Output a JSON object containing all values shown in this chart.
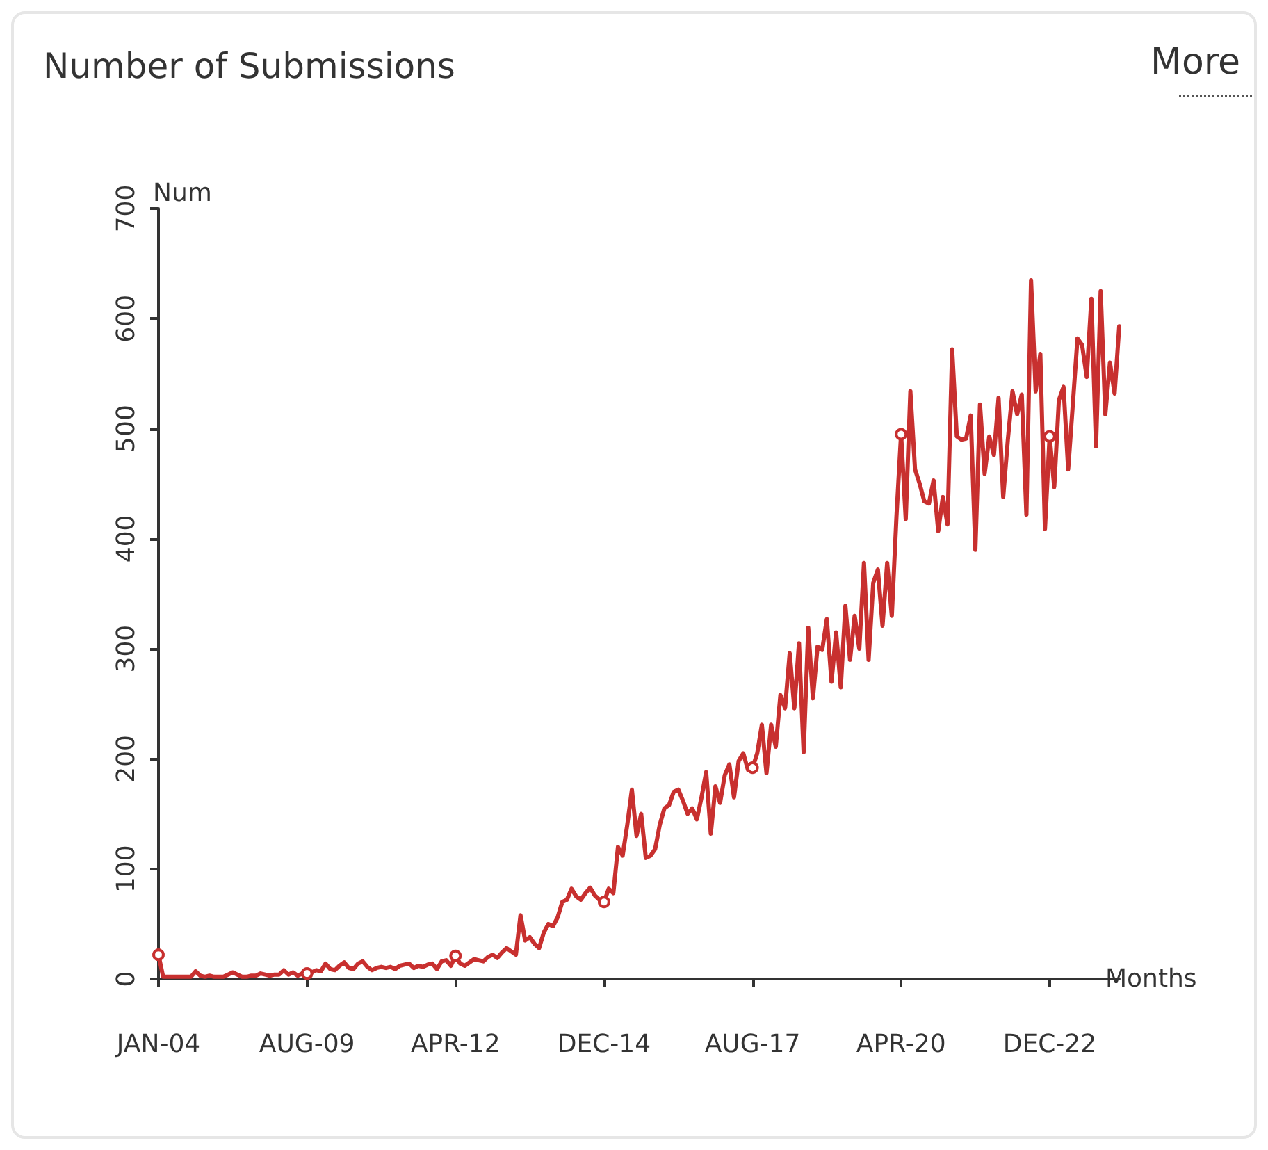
{
  "chart_data": {
    "type": "line",
    "title": "Number of Submissions",
    "xlabel": "Months",
    "ylabel": "Num",
    "annotations": [
      "More"
    ],
    "categories": [
      "JAN-04",
      null,
      null,
      null,
      null,
      null,
      null,
      null,
      null,
      null,
      null,
      null,
      null,
      null,
      null,
      null,
      null,
      null,
      null,
      null,
      null,
      null,
      null,
      null,
      null,
      null,
      null,
      null,
      null,
      null,
      null,
      null,
      "AUG-09",
      null,
      null,
      null,
      null,
      null,
      null,
      null,
      null,
      null,
      null,
      null,
      null,
      null,
      null,
      null,
      null,
      null,
      null,
      null,
      null,
      null,
      null,
      null,
      null,
      null,
      null,
      null,
      null,
      null,
      null,
      null,
      "APR-12",
      null,
      null,
      null,
      null,
      null,
      null,
      null,
      null,
      null,
      null,
      null,
      null,
      null,
      null,
      null,
      null,
      null,
      null,
      null,
      null,
      null,
      null,
      null,
      null,
      null,
      null,
      null,
      null,
      null,
      null,
      null,
      "DEC-14",
      null,
      null,
      null,
      null,
      null,
      null,
      null,
      null,
      null,
      null,
      null,
      null,
      null,
      null,
      null,
      null,
      null,
      null,
      null,
      null,
      null,
      null,
      null,
      null,
      null,
      null,
      null,
      null,
      null,
      null,
      null,
      "AUG-17",
      null,
      null,
      null,
      null,
      null,
      null,
      null,
      null,
      null,
      null,
      null,
      null,
      null,
      null,
      null,
      null,
      null,
      null,
      null,
      null,
      null,
      null,
      null,
      null,
      null,
      null,
      null,
      null,
      null,
      null,
      null,
      "APR-20",
      null,
      null,
      null,
      null,
      null,
      null,
      null,
      null,
      null,
      null,
      null,
      null,
      null,
      null,
      null,
      null,
      null,
      null,
      null,
      null,
      null,
      null,
      null,
      null,
      null,
      null,
      null,
      null,
      null,
      null,
      null,
      "DEC-22",
      null,
      null,
      null,
      null,
      null,
      null,
      null,
      null,
      null,
      null,
      null,
      null,
      null,
      null,
      null
    ],
    "series": [
      {
        "color": "#c8302f",
        "values": [
          22,
          2,
          2,
          2,
          2,
          2,
          2,
          2,
          7,
          3,
          2,
          3,
          2,
          2,
          2,
          4,
          6,
          4,
          2,
          2,
          3,
          3,
          5,
          4,
          3,
          4,
          4,
          8,
          4,
          6,
          3,
          5,
          5,
          6,
          8,
          7,
          14,
          9,
          8,
          12,
          15,
          10,
          9,
          14,
          16,
          11,
          8,
          10,
          11,
          10,
          11,
          9,
          12,
          13,
          14,
          10,
          12,
          11,
          13,
          14,
          9,
          16,
          17,
          12,
          21,
          14,
          12,
          15,
          18,
          17,
          16,
          20,
          22,
          19,
          24,
          28,
          25,
          22,
          58,
          35,
          38,
          32,
          28,
          42,
          50,
          48,
          56,
          70,
          72,
          82,
          75,
          72,
          78,
          83,
          76,
          72,
          70,
          82,
          78,
          120,
          112,
          140,
          172,
          130,
          150,
          110,
          112,
          118,
          140,
          155,
          158,
          170,
          172,
          162,
          150,
          155,
          145,
          165,
          188,
          132,
          175,
          160,
          185,
          195,
          165,
          198,
          205,
          190,
          192,
          205,
          231,
          187,
          231,
          211,
          258,
          246,
          296,
          246,
          305,
          206,
          319,
          255,
          302,
          299,
          327,
          270,
          315,
          265,
          339,
          290,
          330,
          300,
          378,
          290,
          360,
          372,
          321,
          378,
          330,
          420,
          495,
          418,
          534,
          463,
          450,
          434,
          432,
          453,
          407,
          438,
          413,
          572,
          493,
          490,
          491,
          512,
          390,
          522,
          459,
          493,
          476,
          528,
          438,
          490,
          534,
          513,
          531,
          422,
          635,
          534,
          568,
          409,
          493,
          447,
          526,
          538,
          463,
          522,
          582,
          576,
          547,
          618,
          484,
          625,
          513,
          560,
          532,
          593
        ]
      }
    ],
    "ylim": [
      0,
      700
    ],
    "yticks": [
      0,
      100,
      200,
      300,
      400,
      500,
      600,
      700
    ],
    "grid": false,
    "line_style": "solid"
  }
}
